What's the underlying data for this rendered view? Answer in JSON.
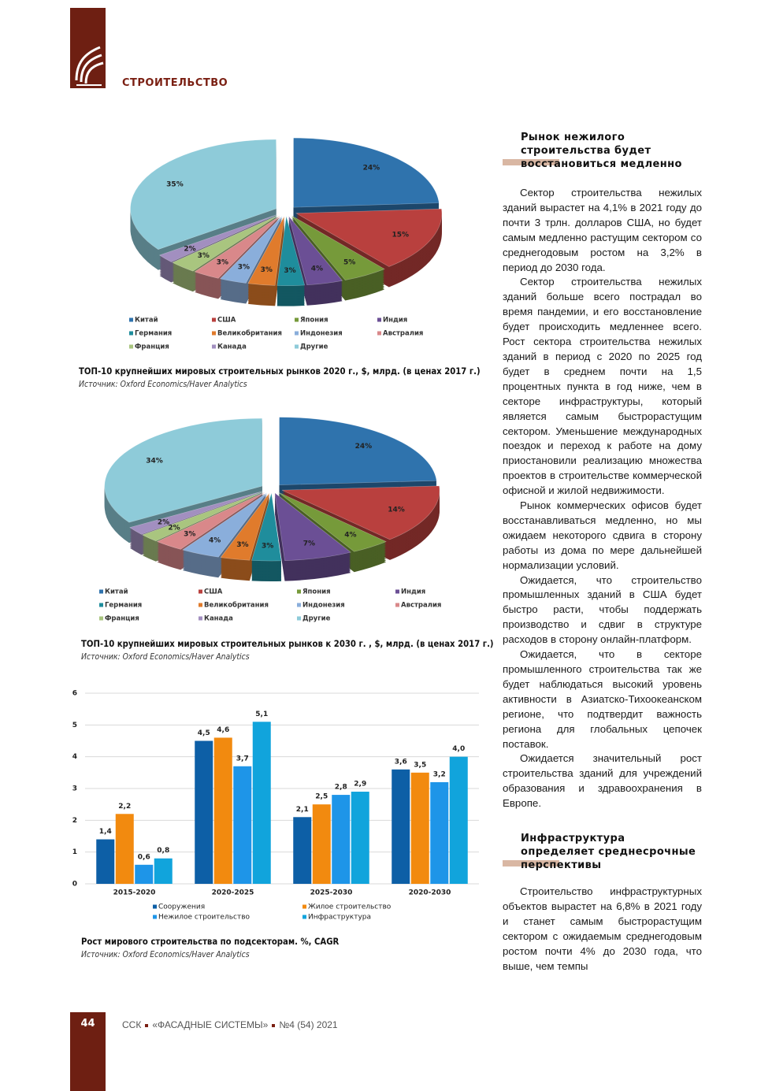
{
  "header": {
    "section": "СТРОИТЕЛЬСТВО"
  },
  "chart_data": [
    {
      "type": "pie",
      "categories": [
        "Китай",
        "США",
        "Япония",
        "Индия",
        "Германия",
        "Великобритания",
        "Индонезия",
        "Австралия",
        "Франция",
        "Канада",
        "Другие"
      ],
      "values": [
        24,
        15,
        5,
        4,
        3,
        3,
        3,
        3,
        3,
        2,
        35
      ],
      "value_labels": [
        "24%",
        "15%",
        "5%",
        "4%",
        "3%",
        "3%",
        "3%",
        "3%",
        "3%",
        "2%",
        "35%"
      ],
      "colors": [
        "#2f73ad",
        "#b9403e",
        "#769a3a",
        "#6b4f95",
        "#1f8d9c",
        "#e07b2c",
        "#8aaedb",
        "#d9888a",
        "#a9c57f",
        "#a28fc0",
        "#8ecbd9"
      ],
      "caption": "ТОП-10 крупнейших мировых строительных рынков 2020 г., $, млрд. (в ценах 2017 г.)",
      "source": "Источник: Oxford Economics/Haver Analytics"
    },
    {
      "type": "pie",
      "categories": [
        "Китай",
        "США",
        "Япония",
        "Индия",
        "Германия",
        "Великобритания",
        "Индонезия",
        "Австралия",
        "Франция",
        "Канада",
        "Другие"
      ],
      "values": [
        24,
        14,
        4,
        7,
        3,
        3,
        4,
        3,
        2,
        2,
        34
      ],
      "value_labels": [
        "24%",
        "14%",
        "4%",
        "7%",
        "3%",
        "3%",
        "4%",
        "3%",
        "2%",
        "2%",
        "34%"
      ],
      "colors": [
        "#2f73ad",
        "#b9403e",
        "#769a3a",
        "#6b4f95",
        "#1f8d9c",
        "#e07b2c",
        "#8aaedb",
        "#d9888a",
        "#a9c57f",
        "#a28fc0",
        "#8ecbd9"
      ],
      "caption": "ТОП-10 крупнейших мировых строительных рынков к 2030 г. , $, млрд. (в ценах 2017 г.)",
      "source": "Источник: Oxford Economics/Haver Analytics"
    },
    {
      "type": "bar",
      "categories": [
        "2015-2020",
        "2020-2025",
        "2025-2030",
        "2020-2030"
      ],
      "series": [
        {
          "name": "Сооружения",
          "color": "#0d5fa6",
          "values": [
            1.4,
            4.5,
            2.1,
            3.6
          ],
          "value_labels": [
            "1,4",
            "4,5",
            "2,1",
            "3,6"
          ]
        },
        {
          "name": "Жилое строительство",
          "color": "#f28a0f",
          "values": [
            2.2,
            4.6,
            2.5,
            3.5
          ],
          "value_labels": [
            "2,2",
            "4,6",
            "2,5",
            "3,5"
          ]
        },
        {
          "name": "Нежилое строительство",
          "color": "#1e95e8",
          "values": [
            0.6,
            3.7,
            2.8,
            3.2
          ],
          "value_labels": [
            "0,6",
            "3,7",
            "2,8",
            "3,2"
          ]
        },
        {
          "name": "Инфраструктура",
          "color": "#11a4dc",
          "values": [
            0.8,
            5.1,
            2.9,
            4.0
          ],
          "value_labels": [
            "0,8",
            "5,1",
            "2,9",
            "4,0"
          ]
        }
      ],
      "ylim": [
        0,
        6
      ],
      "yticks": [
        0,
        1,
        2,
        3,
        4,
        5,
        6
      ],
      "grid": true,
      "caption": "Рост мирового строительства по подсекторам. %, CAGR",
      "source": "Источник: Oxford Economics/Haver Analytics"
    }
  ],
  "article": {
    "heading1": "Рынок нежилого строительства будет восстановиться медленно",
    "paragraphs1": [
      "Сектор строительства нежилых зданий вырастет на 4,1% в 2021 году до почти 3 трлн. долларов США, но будет самым медленно растущим сектором со среднегодовым ростом на 3,2% в период до 2030 года.",
      "Сектор строительства нежилых зданий больше всего пострадал во время пандемии, и его восстановление будет происходить медленнее всего. Рост сектора строительства нежилых зданий в период с 2020 по 2025 год будет в среднем почти на 1,5 процентных пункта в год ниже, чем в секторе инфраструктуры, который является самым быстрорастущим сектором. Уменьшение международных поездок и переход к работе на дому приостановили реализацию множества проектов в строительстве коммерческой офисной и жилой недвижимости.",
      "Рынок коммерческих офисов будет восстанавливаться медленно, но мы ожидаем некоторого сдвига в сторону работы из дома по мере дальнейшей нормализации условий.",
      "Ожидается, что строительство промышленных зданий в США будет быстро расти, чтобы поддержать производство и сдвиг в структуре расходов в сторону онлайн-платформ.",
      "Ожидается, что в секторе промышленного строительства так же будет наблюдаться высокий уровень активности в Азиатско-Тихоокеанском регионе, что подтвердит важность региона для глобальных цепочек поставок.",
      "Ожидается значительный рост строительства зданий для учреждений образования и здравоохранения в Европе."
    ],
    "heading2": "Инфраструктура определяет среднесрочные перспективы",
    "paragraphs2": [
      "Строительство инфраструктурных объектов вырастет на 6,8% в 2021 году и станет самым быстрорастущим сектором с ожидаемым среднегодовым ростом почти 4% до 2030 года, что выше, чем темпы"
    ]
  },
  "footer": {
    "page": "44",
    "journal": [
      "ССК",
      "«ФАСАДНЫЕ СИСТЕМЫ»",
      "№4 (54) 2021"
    ]
  }
}
